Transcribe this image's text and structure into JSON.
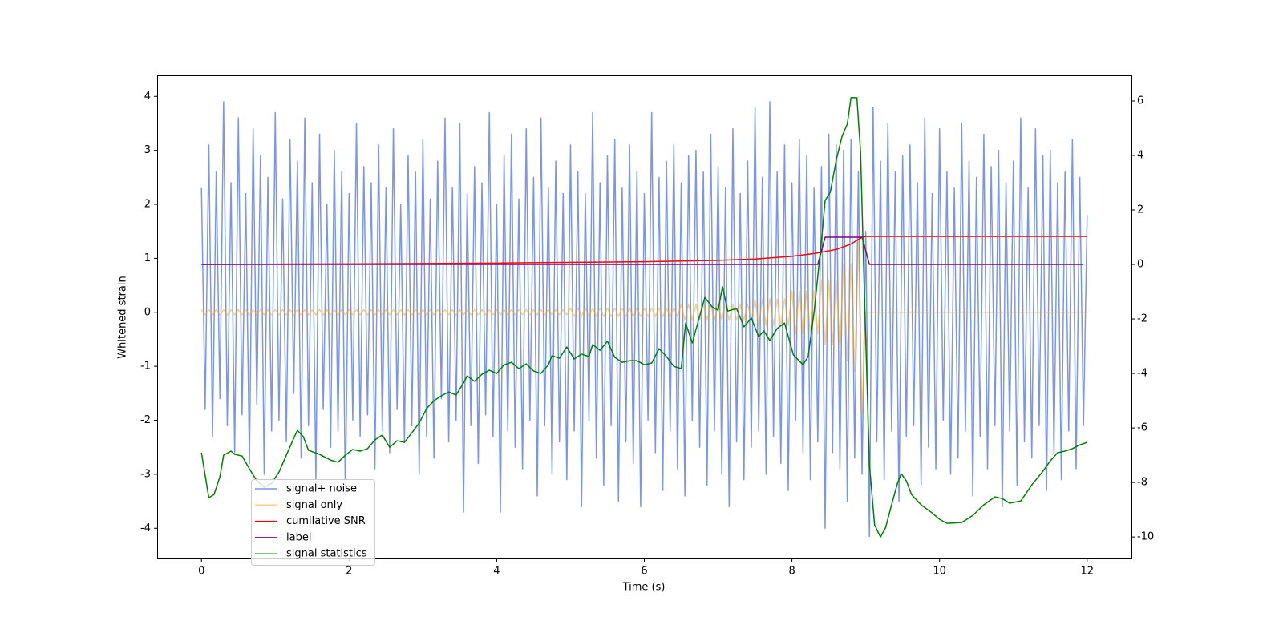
{
  "chart_data": {
    "type": "line",
    "x_label": "Time (s)",
    "y_label": "Whitened strain",
    "xlim": [
      -0.6,
      12.6
    ],
    "xticks": [
      0,
      2,
      4,
      6,
      8,
      10,
      12
    ],
    "ylim": [
      -4.56,
      4.39
    ],
    "yticks": [
      -4,
      -3,
      -2,
      -1,
      0,
      1,
      2,
      3,
      4
    ],
    "y2lim": [
      -10.79,
      6.94
    ],
    "y2ticks": [
      -10,
      -8,
      -6,
      -4,
      -2,
      0,
      2,
      4,
      6
    ],
    "x": [
      0,
      0.05,
      0.1,
      0.15,
      0.2,
      0.25,
      0.3,
      0.35,
      0.4,
      0.45,
      0.5,
      0.55,
      0.6,
      0.65,
      0.7,
      0.75,
      0.8,
      0.85,
      0.9,
      0.95,
      1,
      1.05,
      1.1,
      1.15,
      1.2,
      1.25,
      1.3,
      1.35,
      1.4,
      1.45,
      1.5,
      1.55,
      1.6,
      1.65,
      1.7,
      1.75,
      1.8,
      1.85,
      1.9,
      1.95,
      2,
      2.05,
      2.1,
      2.15,
      2.2,
      2.25,
      2.3,
      2.35,
      2.4,
      2.45,
      2.5,
      2.55,
      2.6,
      2.65,
      2.7,
      2.75,
      2.8,
      2.85,
      2.9,
      2.95,
      3,
      3.05,
      3.1,
      3.15,
      3.2,
      3.25,
      3.3,
      3.35,
      3.4,
      3.45,
      3.5,
      3.55,
      3.6,
      3.65,
      3.7,
      3.75,
      3.8,
      3.85,
      3.9,
      3.95,
      4,
      4.05,
      4.1,
      4.15,
      4.2,
      4.25,
      4.3,
      4.35,
      4.4,
      4.45,
      4.5,
      4.55,
      4.6,
      4.65,
      4.7,
      4.75,
      4.8,
      4.85,
      4.9,
      4.95,
      5,
      5.05,
      5.1,
      5.15,
      5.2,
      5.25,
      5.3,
      5.35,
      5.4,
      5.45,
      5.5,
      5.55,
      5.6,
      5.65,
      5.7,
      5.75,
      5.8,
      5.85,
      5.9,
      5.95,
      6,
      6.05,
      6.1,
      6.15,
      6.2,
      6.25,
      6.3,
      6.35,
      6.4,
      6.45,
      6.5,
      6.55,
      6.6,
      6.65,
      6.7,
      6.75,
      6.8,
      6.85,
      6.9,
      6.95,
      7,
      7.05,
      7.1,
      7.15,
      7.2,
      7.25,
      7.3,
      7.35,
      7.4,
      7.45,
      7.5,
      7.55,
      7.6,
      7.65,
      7.7,
      7.75,
      7.8,
      7.85,
      7.9,
      7.95,
      8,
      8.05,
      8.1,
      8.15,
      8.2,
      8.25,
      8.3,
      8.35,
      8.4,
      8.45,
      8.5,
      8.55,
      8.6,
      8.65,
      8.7,
      8.75,
      8.8,
      8.85,
      8.9,
      8.95,
      9,
      9.05,
      9.1,
      9.15,
      9.2,
      9.25,
      9.3,
      9.35,
      9.4,
      9.45,
      9.5,
      9.55,
      9.6,
      9.65,
      9.7,
      9.75,
      9.8,
      9.85,
      9.9,
      9.95,
      10,
      10.05,
      10.1,
      10.15,
      10.2,
      10.25,
      10.3,
      10.35,
      10.4,
      10.45,
      10.5,
      10.55,
      10.6,
      10.65,
      10.7,
      10.75,
      10.8,
      10.85,
      10.9,
      10.95,
      11,
      11.05,
      11.1,
      11.15,
      11.2,
      11.25,
      11.3,
      11.35,
      11.4,
      11.45,
      11.5,
      11.55,
      11.6,
      11.65,
      11.7,
      11.75,
      11.8,
      11.85,
      11.9,
      11.95,
      12
    ],
    "series": [
      {
        "name": "signal+ noise",
        "color": "#4169e1",
        "alpha": 0.7,
        "values": [
          2.3,
          -1.8,
          3.1,
          -2.3,
          2.6,
          -1.6,
          3.9,
          -2.1,
          2.4,
          -2.6,
          3.6,
          -1.9,
          2.2,
          -2.8,
          3.4,
          -1.7,
          2.9,
          -3.0,
          2.5,
          -2.2,
          3.7,
          -2.0,
          2.1,
          -2.4,
          3.2,
          -1.5,
          2.8,
          -2.7,
          3.6,
          -2.1,
          2.4,
          -3.1,
          3.3,
          -1.8,
          2.0,
          -2.5,
          3.0,
          -2.2,
          2.6,
          -3.4,
          2.2,
          -2.0,
          3.5,
          -2.3,
          2.7,
          -1.9,
          2.4,
          -2.9,
          3.1,
          -2.2,
          2.3,
          -2.6,
          3.4,
          -1.8,
          2.0,
          -2.4,
          2.9,
          -2.1,
          2.6,
          -3.0,
          3.2,
          -2.3,
          2.1,
          -2.7,
          2.8,
          -1.6,
          3.6,
          -2.4,
          2.3,
          -2.0,
          3.5,
          -3.7,
          2.2,
          -2.1,
          2.7,
          -2.8,
          2.4,
          -1.9,
          3.7,
          -2.3,
          2.0,
          -3.7,
          2.9,
          -2.2,
          3.3,
          -2.5,
          2.1,
          -2.9,
          3.4,
          -2.0,
          2.5,
          -3.4,
          3.6,
          -2.1,
          2.3,
          -3.0,
          2.8,
          -2.4,
          2.2,
          -3.1,
          3.1,
          -2.2,
          2.6,
          -3.6,
          2.2,
          -2.0,
          3.7,
          -2.7,
          2.4,
          -3.2,
          2.9,
          -2.1,
          3.2,
          -3.5,
          2.3,
          -2.4,
          3.1,
          -2.8,
          2.6,
          -3.6,
          2.2,
          -2.0,
          3.7,
          -2.6,
          2.5,
          -3.3,
          2.8,
          -2.2,
          3.1,
          -2.9,
          2.4,
          -3.4,
          2.9,
          -2.0,
          3.0,
          -2.5,
          2.6,
          -3.2,
          3.3,
          -2.2,
          2.7,
          -3.0,
          2.3,
          -3.6,
          3.4,
          -2.4,
          2.2,
          -3.1,
          2.8,
          -2.5,
          3.8,
          -2.2,
          2.5,
          -3.0,
          3.9,
          -2.3,
          2.6,
          -2.8,
          3.1,
          -3.3,
          2.4,
          -2.0,
          3.2,
          -2.6,
          2.9,
          -3.1,
          2.3,
          -2.4,
          2.7,
          -4.0,
          3.3,
          -2.6,
          3.1,
          -2.9,
          3.0,
          -3.5,
          3.2,
          -2.7,
          2.6,
          -3.0,
          1.5,
          -4.15,
          3.8,
          -2.4,
          2.8,
          -3.1,
          3.5,
          -2.2,
          2.6,
          -3.5,
          2.9,
          -2.3,
          3.1,
          -2.1,
          2.4,
          -3.2,
          3.6,
          -2.5,
          2.2,
          -2.9,
          3.4,
          -2.0,
          2.6,
          -3.0,
          2.3,
          -2.7,
          3.5,
          -2.2,
          2.8,
          -3.4,
          2.5,
          -2.3,
          3.3,
          -2.9,
          2.7,
          -2.1,
          3.0,
          -3.6,
          2.4,
          -2.2,
          2.8,
          -3.2,
          3.6,
          -2.4,
          2.3,
          -2.7,
          3.4,
          -2.1,
          2.9,
          -3.3,
          3.0,
          -2.6,
          2.4,
          -3.1,
          2.6,
          -2.2,
          3.2,
          -2.9,
          2.5,
          -2.1,
          1.8
        ]
      },
      {
        "name": "signal only",
        "color": "#ffa500",
        "alpha": 0.5,
        "values": [
          0.05,
          -0.05,
          0.05,
          -0.05,
          0.05,
          -0.05,
          0.05,
          -0.05,
          0.05,
          -0.05,
          0.05,
          -0.05,
          0.05,
          -0.05,
          0.05,
          -0.05,
          0.05,
          -0.05,
          0.05,
          -0.05,
          0.05,
          -0.05,
          0.05,
          -0.05,
          0.05,
          -0.05,
          0.05,
          -0.05,
          0.05,
          -0.05,
          0.05,
          -0.05,
          0.05,
          -0.05,
          0.05,
          -0.05,
          0.05,
          -0.05,
          0.05,
          -0.05,
          0.05,
          -0.05,
          0.05,
          -0.05,
          0.05,
          -0.05,
          0.05,
          -0.05,
          0.05,
          -0.05,
          0.05,
          -0.05,
          0.05,
          -0.05,
          0.05,
          -0.05,
          0.05,
          -0.05,
          0.05,
          -0.05,
          0.05,
          -0.05,
          0.05,
          -0.05,
          0.05,
          -0.05,
          0.05,
          -0.05,
          0.05,
          -0.05,
          0.05,
          -0.05,
          0.05,
          -0.05,
          0.05,
          -0.05,
          0.05,
          -0.05,
          0.05,
          -0.05,
          0.05,
          -0.05,
          0.05,
          -0.05,
          0.05,
          -0.05,
          0.05,
          -0.05,
          0.05,
          -0.05,
          0.05,
          -0.05,
          0.05,
          -0.05,
          0.05,
          -0.05,
          0.05,
          -0.05,
          0.05,
          -0.05,
          0.08,
          -0.08,
          0.08,
          -0.08,
          0.08,
          -0.08,
          0.08,
          -0.08,
          0.08,
          -0.08,
          0.08,
          -0.08,
          0.08,
          -0.08,
          0.08,
          -0.08,
          0.08,
          -0.08,
          0.08,
          -0.08,
          0.08,
          -0.08,
          0.08,
          -0.08,
          0.08,
          -0.08,
          0.08,
          -0.08,
          0.08,
          -0.08,
          0.15,
          -0.15,
          0.15,
          -0.15,
          0.15,
          -0.15,
          0.15,
          -0.15,
          0.15,
          -0.15,
          0.15,
          -0.15,
          0.15,
          -0.15,
          0.15,
          -0.15,
          0.15,
          -0.15,
          0.15,
          -0.15,
          0.25,
          -0.25,
          0.25,
          -0.25,
          0.25,
          -0.25,
          0.25,
          -0.25,
          0.25,
          -0.25,
          0.4,
          -0.4,
          0.4,
          -0.4,
          0.4,
          -0.4,
          0.4,
          -0.4,
          0.6,
          -0.6,
          0.6,
          -0.6,
          0.6,
          -0.6,
          0.9,
          -0.9,
          0.9,
          -1.1,
          1.3,
          -1.9,
          0,
          0,
          0,
          0,
          0,
          0,
          0,
          0,
          0,
          0,
          0,
          0,
          0,
          0,
          0,
          0,
          0,
          0,
          0,
          0,
          0,
          0,
          0,
          0,
          0,
          0,
          0,
          0,
          0,
          0,
          0,
          0,
          0,
          0,
          0,
          0,
          0,
          0,
          0,
          0,
          0,
          0,
          0,
          0,
          0,
          0,
          0,
          0,
          0,
          0,
          0,
          0,
          0,
          0,
          0,
          0,
          0,
          0,
          0,
          0,
          0
        ]
      },
      {
        "name": "cumilative SNR",
        "color": "#ff0000",
        "axis": "y2",
        "x": [
          0,
          2,
          4,
          6,
          7,
          7.5,
          8,
          8.3,
          8.6,
          8.8,
          8.95,
          9,
          12
        ],
        "values": [
          0,
          0.02,
          0.05,
          0.1,
          0.15,
          0.2,
          0.3,
          0.4,
          0.55,
          0.75,
          1,
          1.03,
          1.03
        ]
      },
      {
        "name": "label",
        "color": "#800080",
        "axis": "y2",
        "x": [
          0,
          8.35,
          8.45,
          8.95,
          9.05,
          11.95
        ],
        "values": [
          0,
          0,
          1,
          1,
          0,
          0
        ]
      },
      {
        "name": "signal statistics",
        "color": "#008000",
        "axis": "y2",
        "x": [
          0,
          0.1,
          0.17,
          0.25,
          0.3,
          0.4,
          0.45,
          0.55,
          0.65,
          0.75,
          0.85,
          0.95,
          1.05,
          1.15,
          1.25,
          1.3,
          1.38,
          1.45,
          1.6,
          1.75,
          1.85,
          1.95,
          2.05,
          2.15,
          2.25,
          2.35,
          2.45,
          2.55,
          2.65,
          2.75,
          2.85,
          2.95,
          3.05,
          3.15,
          3.25,
          3.35,
          3.45,
          3.55,
          3.6,
          3.7,
          3.8,
          3.9,
          4,
          4.1,
          4.2,
          4.3,
          4.4,
          4.5,
          4.6,
          4.7,
          4.75,
          4.85,
          4.95,
          5.05,
          5.15,
          5.25,
          5.3,
          5.4,
          5.5,
          5.6,
          5.7,
          5.8,
          5.9,
          6,
          6.1,
          6.2,
          6.3,
          6.4,
          6.5,
          6.56,
          6.65,
          6.82,
          6.92,
          7,
          7.06,
          7.13,
          7.25,
          7.35,
          7.45,
          7.55,
          7.62,
          7.7,
          7.8,
          7.9,
          8.02,
          8.15,
          8.22,
          8.3,
          8.4,
          8.45,
          8.52,
          8.6,
          8.68,
          8.75,
          8.8,
          8.88,
          8.93,
          8.98,
          9.05,
          9.12,
          9.2,
          9.27,
          9.35,
          9.43,
          9.48,
          9.55,
          9.62,
          9.75,
          9.9,
          10,
          10.1,
          10.3,
          10.45,
          10.6,
          10.75,
          10.85,
          10.95,
          11.1,
          11.25,
          11.4,
          11.5,
          11.6,
          11.7,
          11.8,
          11.9,
          12
        ],
        "values": [
          -6.91,
          -8.56,
          -8.44,
          -7.79,
          -7,
          -6.85,
          -6.97,
          -7.03,
          -7.5,
          -7.94,
          -8.18,
          -8.03,
          -7.62,
          -7,
          -6.38,
          -6.09,
          -6.32,
          -6.82,
          -6.97,
          -7.18,
          -7.26,
          -7,
          -6.79,
          -6.85,
          -6.76,
          -6.44,
          -6.26,
          -6.71,
          -6.47,
          -6.53,
          -6.18,
          -5.82,
          -5.29,
          -5,
          -4.82,
          -4.68,
          -4.79,
          -4.35,
          -4.09,
          -4.29,
          -4.03,
          -3.88,
          -4,
          -3.68,
          -3.59,
          -3.82,
          -3.65,
          -3.91,
          -4,
          -3.68,
          -3.35,
          -3.44,
          -3.03,
          -3.47,
          -3.29,
          -3.38,
          -2.94,
          -3.15,
          -2.82,
          -3.41,
          -3.59,
          -3.53,
          -3.53,
          -3.68,
          -3.62,
          -3.09,
          -3.38,
          -3.74,
          -3.82,
          -2.15,
          -2.88,
          -1.21,
          -1.56,
          -1.68,
          -0.82,
          -1.71,
          -1.62,
          -2.29,
          -1.97,
          -2.65,
          -2.44,
          -2.79,
          -2.35,
          -2.15,
          -3.32,
          -3.68,
          -3.38,
          -1.76,
          0.88,
          2.35,
          2.65,
          3.82,
          4.71,
          5.15,
          6.12,
          6.12,
          4.12,
          -0.88,
          -7.35,
          -9.56,
          -10,
          -9.65,
          -8.82,
          -8.03,
          -7.68,
          -7.94,
          -8.44,
          -8.82,
          -9.12,
          -9.35,
          -9.5,
          -9.47,
          -9.21,
          -8.82,
          -8.53,
          -8.59,
          -8.76,
          -8.68,
          -8.09,
          -7.59,
          -7.21,
          -6.91,
          -6.85,
          -6.76,
          -6.62,
          -6.53
        ]
      }
    ]
  }
}
